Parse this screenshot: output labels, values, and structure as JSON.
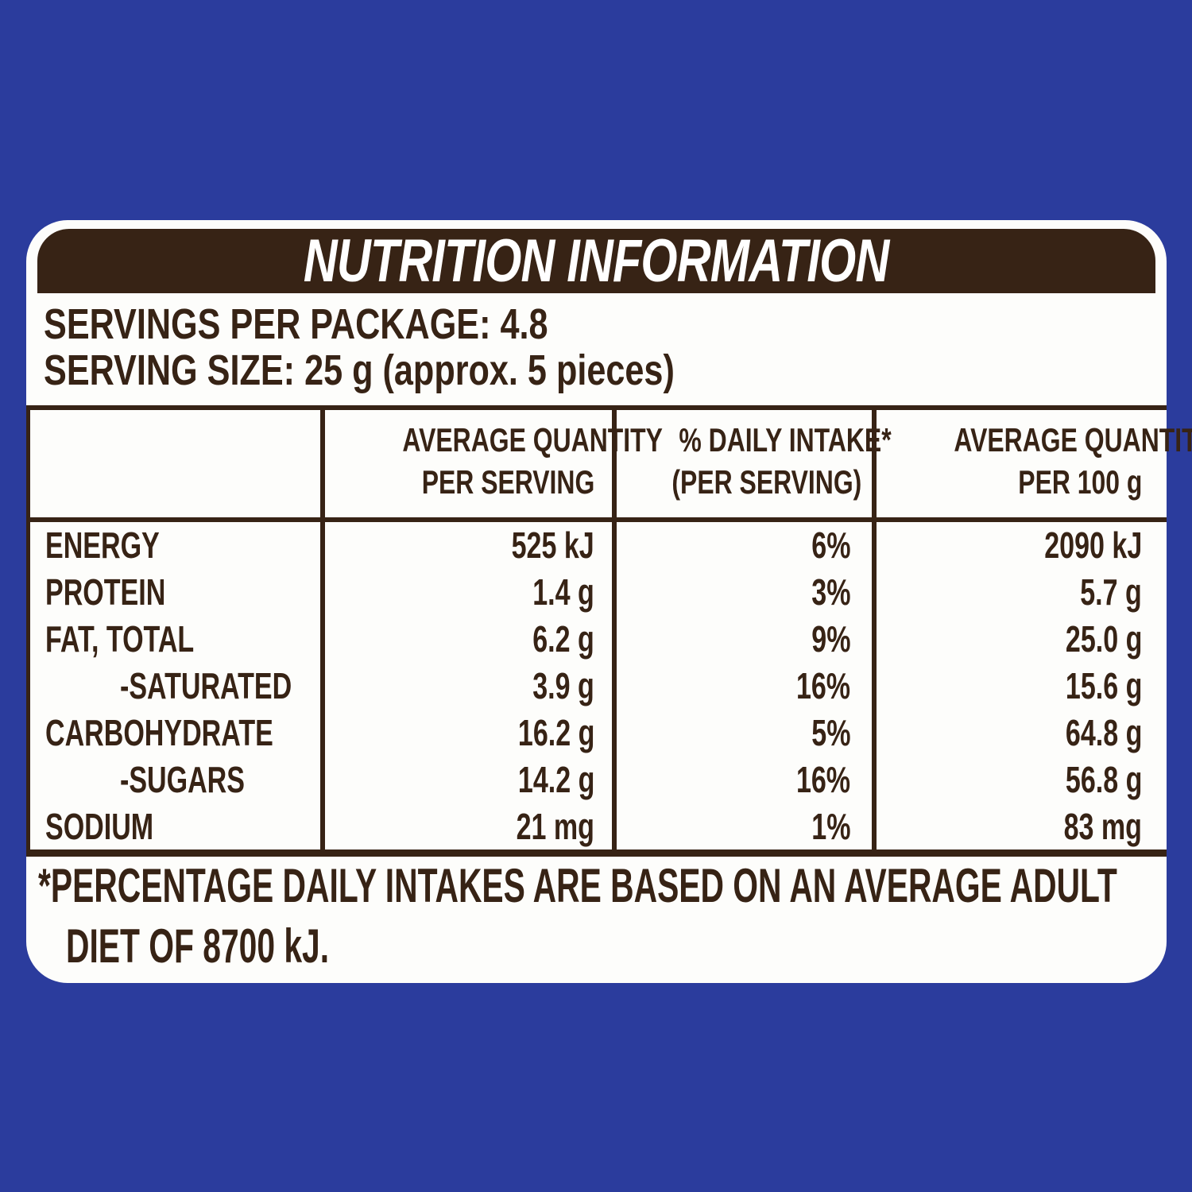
{
  "colors": {
    "background": "#2b3c9d",
    "panel": "#fdfdfb",
    "accent_brown": "#372315",
    "title_text": "#ffffff"
  },
  "header": {
    "title": "NUTRITION INFORMATION"
  },
  "serving_info": {
    "servings_per_package": "SERVINGS PER PACKAGE: 4.8",
    "serving_size": "SERVING SIZE: 25 g (approx. 5 pieces)"
  },
  "table": {
    "column_headers": {
      "per_serving": {
        "line1": "AVERAGE QUANTITY",
        "line2": "PER SERVING"
      },
      "daily_intake": {
        "line1": "% DAILY INTAKE*",
        "line2": "(PER SERVING)"
      },
      "per_100g": {
        "line1": "AVERAGE QUANTITY",
        "line2": "PER 100 g"
      }
    },
    "rows": [
      {
        "nutrient": "ENERGY",
        "indented": false,
        "per_serving": "525 kJ",
        "daily_intake": "6%",
        "per_100g": "2090 kJ"
      },
      {
        "nutrient": "PROTEIN",
        "indented": false,
        "per_serving": "1.4 g",
        "daily_intake": "3%",
        "per_100g": "5.7 g"
      },
      {
        "nutrient": "FAT, TOTAL",
        "indented": false,
        "per_serving": "6.2 g",
        "daily_intake": "9%",
        "per_100g": "25.0 g"
      },
      {
        "nutrient": "-SATURATED",
        "indented": true,
        "per_serving": "3.9 g",
        "daily_intake": "16%",
        "per_100g": "15.6 g"
      },
      {
        "nutrient": "CARBOHYDRATE",
        "indented": false,
        "per_serving": "16.2 g",
        "daily_intake": "5%",
        "per_100g": "64.8 g"
      },
      {
        "nutrient": "-SUGARS",
        "indented": true,
        "per_serving": "14.2 g",
        "daily_intake": "16%",
        "per_100g": "56.8 g"
      },
      {
        "nutrient": "SODIUM",
        "indented": false,
        "per_serving": "21 mg",
        "daily_intake": "1%",
        "per_100g": "83 mg"
      }
    ]
  },
  "footnote": {
    "line1": "*PERCENTAGE DAILY INTAKES ARE BASED ON AN AVERAGE ADULT",
    "line2": "DIET OF 8700 kJ."
  }
}
